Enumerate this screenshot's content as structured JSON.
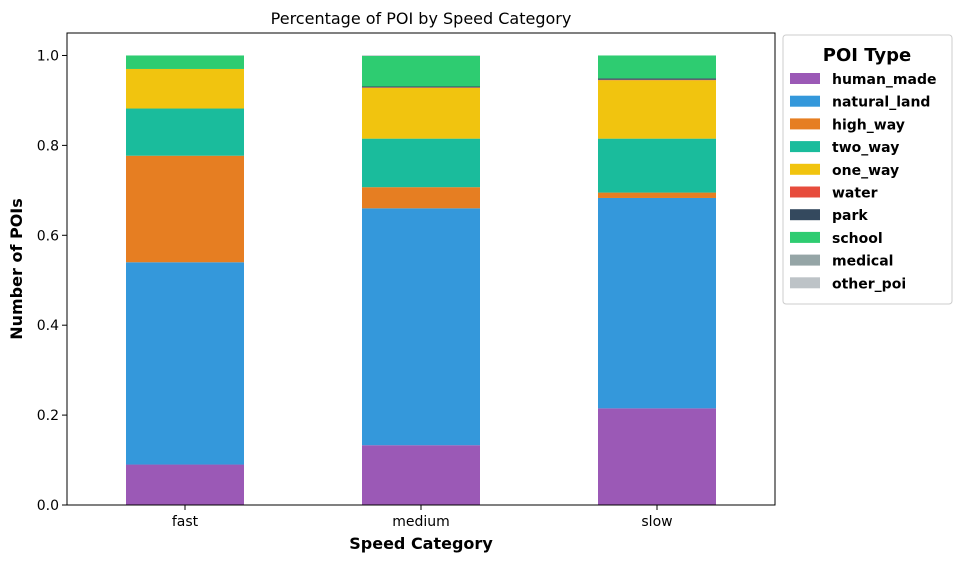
{
  "chart_data": {
    "type": "bar",
    "stacked": true,
    "title": "Percentage of POI by Speed Category",
    "xlabel": "Speed Category",
    "ylabel": "Number of POIs",
    "categories": [
      "fast",
      "medium",
      "slow"
    ],
    "ylim": [
      0,
      1.05
    ],
    "yticks": [
      "0.0",
      "0.2",
      "0.4",
      "0.6",
      "0.8",
      "1.0"
    ],
    "ytick_values": [
      0,
      0.2,
      0.4,
      0.6,
      0.8,
      1.0
    ],
    "grid": false,
    "legend": {
      "title": "POI Type",
      "placement": "outside-right"
    },
    "series": [
      {
        "name": "human_made",
        "color": "#9b59b6",
        "values": [
          0.09,
          0.133,
          0.215
        ]
      },
      {
        "name": "natural_land",
        "color": "#3498db",
        "values": [
          0.45,
          0.527,
          0.468
        ]
      },
      {
        "name": "high_way",
        "color": "#e67e22",
        "values": [
          0.237,
          0.047,
          0.012
        ]
      },
      {
        "name": "two_way",
        "color": "#1abc9c",
        "values": [
          0.105,
          0.108,
          0.12
        ]
      },
      {
        "name": "one_way",
        "color": "#f1c40f",
        "values": [
          0.088,
          0.113,
          0.13
        ]
      },
      {
        "name": "water",
        "color": "#e74c3c",
        "values": [
          0.0,
          0.001,
          0.001
        ]
      },
      {
        "name": "park",
        "color": "#34495e",
        "values": [
          0.0,
          0.002,
          0.003
        ]
      },
      {
        "name": "school",
        "color": "#2ecc71",
        "values": [
          0.03,
          0.068,
          0.051
        ]
      },
      {
        "name": "medical",
        "color": "#95a5a6",
        "values": [
          0.0,
          0.001,
          0.0
        ]
      },
      {
        "name": "other_poi",
        "color": "#bdc3c7",
        "values": [
          0.0,
          0.0,
          0.0
        ]
      }
    ]
  }
}
